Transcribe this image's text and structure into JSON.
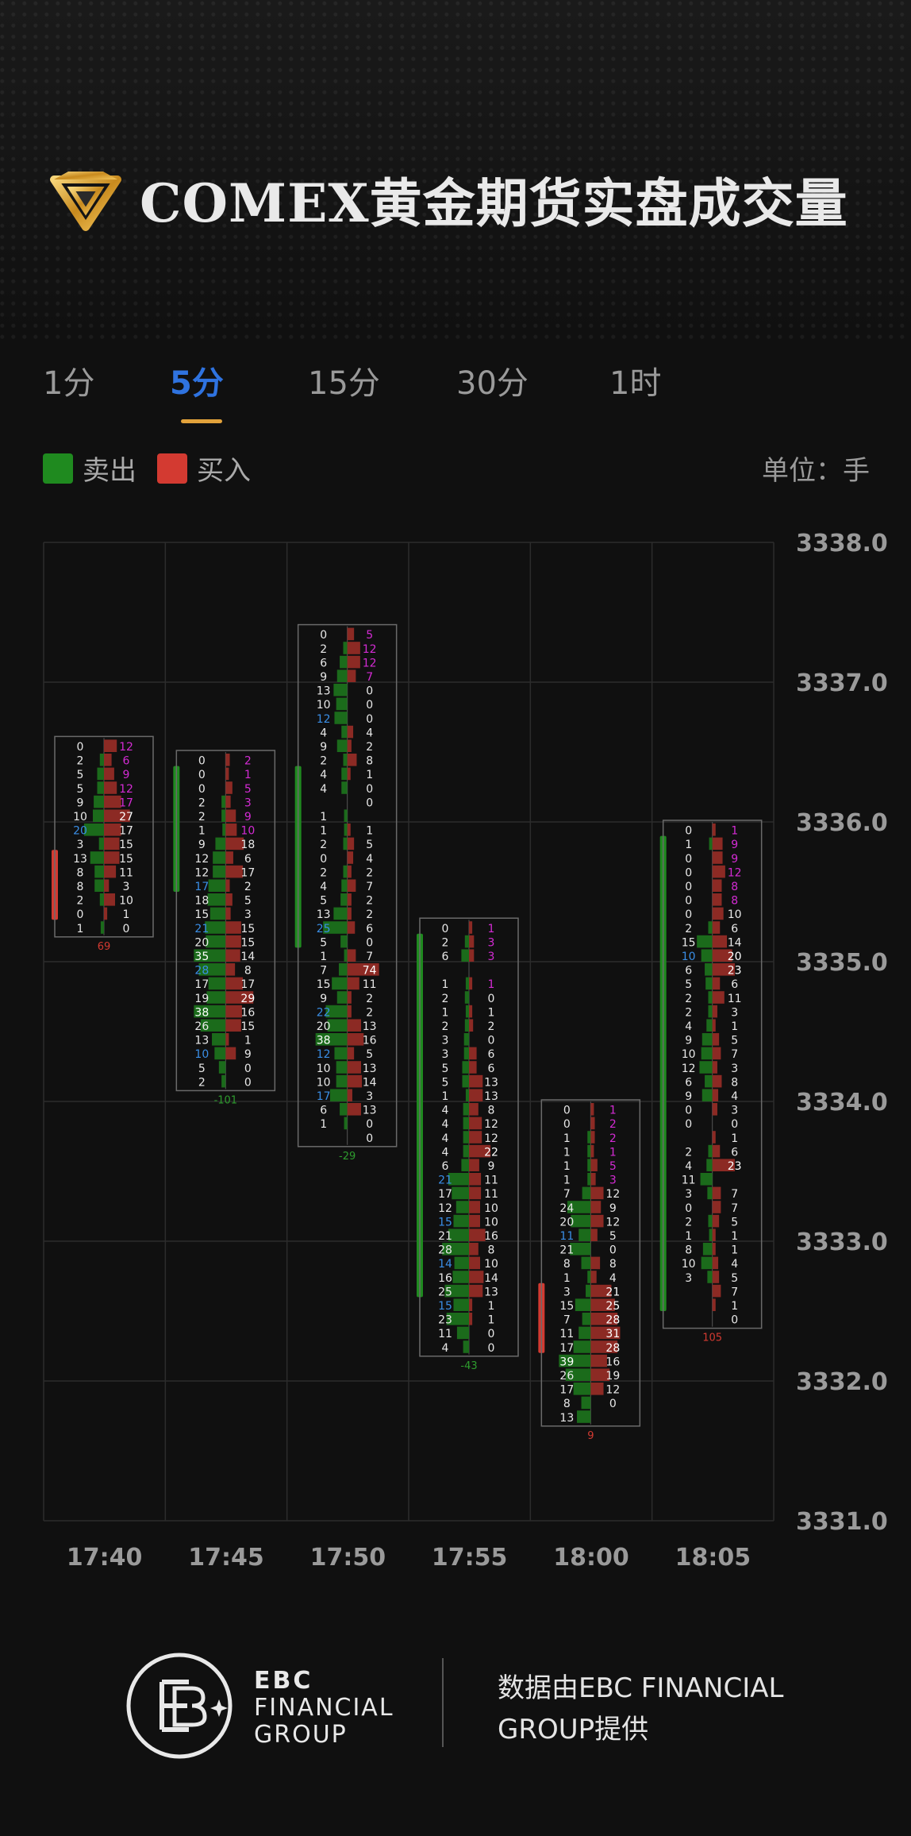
{
  "header": {
    "title": "COMEX黄金期货实盘成交量",
    "logo_icon": "gold-diamond-icon"
  },
  "tabs": [
    {
      "label": "1分",
      "active": false
    },
    {
      "label": "5分",
      "active": true
    },
    {
      "label": "15分",
      "active": false
    },
    {
      "label": "30分",
      "active": false
    },
    {
      "label": "1时",
      "active": false
    }
  ],
  "legend": {
    "sell": {
      "label": "卖出",
      "color": "#1f8a1f"
    },
    "buy": {
      "label": "买入",
      "color": "#d33a31"
    },
    "unit": "单位：手"
  },
  "chart_data": {
    "type": "footprint",
    "ylim": [
      3331.0,
      3338.0
    ],
    "y_ticks": [
      "3338.0",
      "3337.0",
      "3336.0",
      "3335.0",
      "3334.0",
      "3333.0",
      "3332.0",
      "3331.0"
    ],
    "tick_step": 0.1,
    "colors": {
      "sell": "#1f8a1f",
      "buy": "#d33a31",
      "bid_big": "#3a8ee6",
      "ask_big": "#d42bd4",
      "delta_pos": "#d33a31",
      "delta_neg": "#2e9c2e"
    },
    "candles": [
      {
        "time": "17:40",
        "open": 3335.8,
        "close": 3335.3,
        "high": 3336.6,
        "low": 3335.2,
        "delta": "69",
        "bid": [
          "0",
          "2",
          "5",
          "5",
          "9",
          "10",
          "20",
          "3",
          "13",
          "8",
          "8",
          "2",
          "0",
          "1"
        ],
        "ask": [
          "12",
          "6",
          "9",
          "12",
          "17",
          "27",
          "17",
          "15",
          "15",
          "11",
          "3",
          "10",
          "1",
          "0"
        ]
      },
      {
        "time": "17:45",
        "open": 3335.5,
        "close": 3336.4,
        "high": 3336.5,
        "low": 3334.1,
        "delta": "-101",
        "bid": [
          "0",
          "0",
          "0",
          "2",
          "2",
          "1",
          "9",
          "12",
          "12",
          "17",
          "18",
          "15",
          "21",
          "20",
          "35",
          "28",
          "17",
          "19",
          "38",
          "26",
          "13",
          "10",
          "5",
          "2"
        ],
        "ask": [
          "2",
          "1",
          "5",
          "3",
          "9",
          "10",
          "18",
          "6",
          "17",
          "2",
          "5",
          "3",
          "15",
          "15",
          "14",
          "8",
          "17",
          "29",
          "16",
          "15",
          "1",
          "9",
          "0",
          "0"
        ]
      },
      {
        "time": "17:50",
        "open": 3335.1,
        "close": 3336.4,
        "high": 3337.4,
        "low": 3333.8,
        "delta": "-29",
        "bid": [
          "0",
          "2",
          "6",
          "9",
          "13",
          "10",
          "12",
          "4",
          "9",
          "2",
          "4",
          "4",
          "",
          "1",
          "1",
          "2",
          "0",
          "2",
          "4",
          "5",
          "13",
          "25",
          "5",
          "1",
          "7",
          "15",
          "9",
          "22",
          "20",
          "38",
          "12",
          "10",
          "10",
          "17",
          "6",
          "1"
        ],
        "ask": [
          "5",
          "12",
          "12",
          "7",
          "0",
          "0",
          "0",
          "4",
          "2",
          "8",
          "1",
          "0",
          "0",
          "",
          "1",
          "5",
          "4",
          "2",
          "7",
          "2",
          "2",
          "6",
          "0",
          "7",
          "74",
          "11",
          "2",
          "2",
          "13",
          "16",
          "5",
          "13",
          "14",
          "3",
          "13",
          "0",
          "0"
        ]
      },
      {
        "time": "17:55",
        "open": 3332.6,
        "close": 3335.2,
        "high": 3335.3,
        "low": 3332.2,
        "delta": "-43",
        "bid": [
          "0",
          "2",
          "6",
          "",
          "1",
          "2",
          "1",
          "2",
          "3",
          "3",
          "5",
          "5",
          "1",
          "4",
          "4",
          "4",
          "4",
          "6",
          "21",
          "17",
          "12",
          "15",
          "21",
          "28",
          "14",
          "16",
          "25",
          "15",
          "23",
          "11",
          "4"
        ],
        "ask": [
          "1",
          "3",
          "3",
          "",
          "1",
          "0",
          "1",
          "2",
          "0",
          "6",
          "6",
          "13",
          "13",
          "8",
          "12",
          "12",
          "22",
          "9",
          "11",
          "11",
          "10",
          "10",
          "16",
          "8",
          "10",
          "14",
          "13",
          "1",
          "1",
          "0",
          "0"
        ]
      },
      {
        "time": "18:00",
        "open": 3332.7,
        "close": 3332.2,
        "high": 3334.0,
        "low": 3331.7,
        "delta": "9",
        "bid": [
          "0",
          "0",
          "1",
          "1",
          "1",
          "1",
          "7",
          "24",
          "20",
          "11",
          "21",
          "8",
          "1",
          "3",
          "15",
          "7",
          "11",
          "17",
          "39",
          "26",
          "17",
          "8",
          "13"
        ],
        "ask": [
          "1",
          "2",
          "2",
          "1",
          "5",
          "3",
          "12",
          "9",
          "12",
          "5",
          "0",
          "8",
          "4",
          "21",
          "25",
          "28",
          "31",
          "28",
          "16",
          "19",
          "12",
          "0"
        ]
      },
      {
        "time": "18:05",
        "open": 3332.5,
        "close": 3335.9,
        "high": 3336.0,
        "low": 3332.3,
        "delta": "105",
        "bid": [
          "0",
          "1",
          "0",
          "0",
          "0",
          "0",
          "0",
          "2",
          "15",
          "10",
          "6",
          "5",
          "2",
          "2",
          "4",
          "9",
          "10",
          "12",
          "6",
          "9",
          "0",
          "0",
          "",
          "2",
          "4",
          "11",
          "3",
          "0",
          "2",
          "1",
          "8",
          "10",
          "3"
        ],
        "ask": [
          "1",
          "9",
          "9",
          "12",
          "8",
          "8",
          "10",
          "6",
          "14",
          "20",
          "23",
          "6",
          "11",
          "3",
          "1",
          "5",
          "7",
          "3",
          "8",
          "4",
          "3",
          "0",
          "1",
          "6",
          "23",
          "",
          "7",
          "7",
          "5",
          "1",
          "1",
          "4",
          "5",
          "7",
          "1",
          "0"
        ]
      }
    ]
  },
  "footer": {
    "brand_line1": "EBC",
    "brand_line2": "FINANCIAL",
    "brand_line3": "GROUP",
    "provider": "数据由EBC FINANCIAL GROUP提供"
  }
}
